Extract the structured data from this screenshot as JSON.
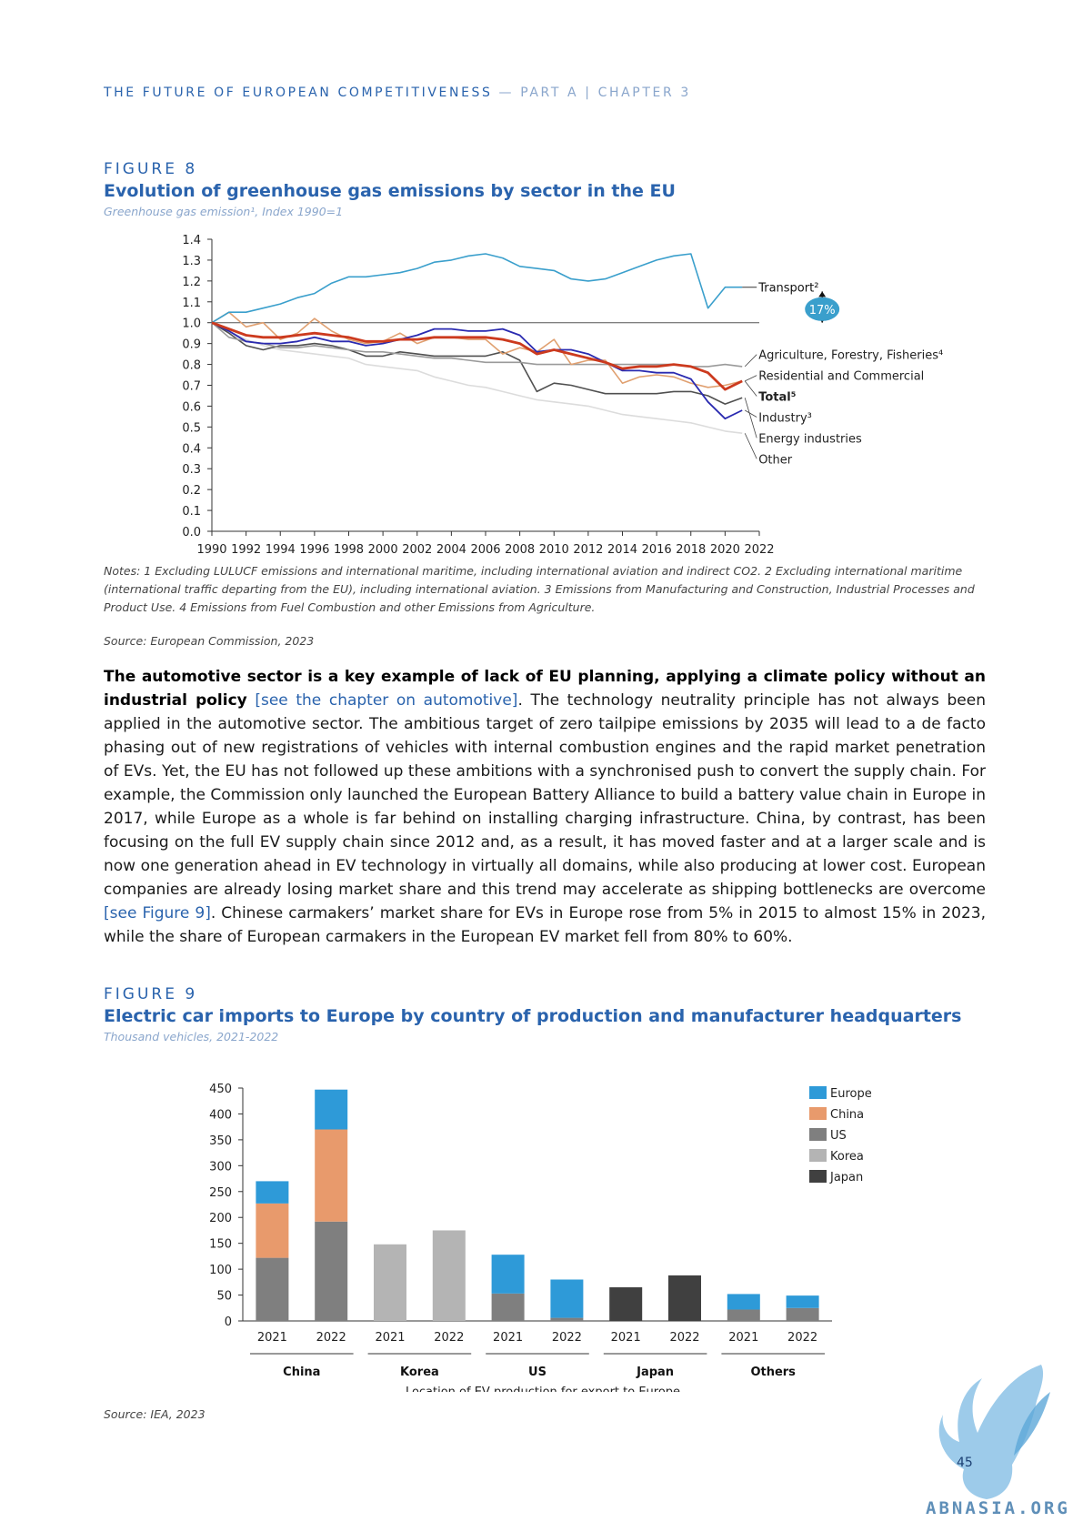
{
  "header": {
    "main": "THE FUTURE OF EUROPEAN COMPETITIVENESS",
    "sep": " — ",
    "part": "PART A | CHAPTER 3"
  },
  "figure8": {
    "label": "FIGURE 8",
    "title": "Evolution of greenhouse gas emissions by sector in the EU",
    "subtitle": "Greenhouse gas emission¹, Index 1990=1",
    "notes": "Notes: 1 Excluding LULUCF emissions and international maritime, including international aviation and indirect CO2. 2 Excluding international maritime (international traffic departing from the EU), including international aviation. 3 Emissions from Manufacturing and Construction, Industrial Processes and Product Use. 4 Emissions from Fuel Combustion and other Emissions from Agriculture.",
    "source": "Source: European Commission, 2023",
    "callout": "17%"
  },
  "body": {
    "bold": "The automotive sector is a key example of lack of EU planning, applying a climate policy without an industrial policy",
    "link1": "[see the chapter on automotive]",
    "text1": ". The technology neutrality principle has not always been applied in the automotive sector. The ambitious target of zero tailpipe emissions by 2035 will lead to a de facto phasing out of new registrations of vehicles with internal combustion engines and the rapid market penetration of EVs. Yet, the EU has not followed up these ambitions with a synchronised push to convert the supply chain. For example, the Commission only launched the European Battery Alliance to build a battery value chain in Europe in 2017, while Europe as a whole is far behind on installing charging infrastructure. China, by contrast, has been focusing on the full EV supply chain since 2012 and, as a result, it has moved faster and at a larger scale and is now one generation ahead in EV technology in virtually all domains, while also producing at lower cost. European companies are already losing market share and this trend may accelerate as shipping bottlenecks are overcome ",
    "link2": "[see Figure 9]",
    "text2": ". Chinese carmakers’ market share for EVs in Europe rose from 5% in 2015 to almost 15% in 2023, while the share of European carmakers in the European EV market fell from 80% to 60%."
  },
  "figure9": {
    "label": "FIGURE 9",
    "title": "Electric car imports to Europe by country of production and manufacturer headquarters",
    "subtitle": "Thousand vehicles, 2021-2022",
    "source": "Source: IEA, 2023"
  },
  "page": {
    "number": "45",
    "logo_text": "ABNASIA.ORG"
  },
  "chart_data": [
    {
      "type": "line",
      "x": [
        1990,
        1991,
        1992,
        1993,
        1994,
        1995,
        1996,
        1997,
        1998,
        1999,
        2000,
        2001,
        2002,
        2003,
        2004,
        2005,
        2006,
        2007,
        2008,
        2009,
        2010,
        2011,
        2012,
        2013,
        2014,
        2015,
        2016,
        2017,
        2018,
        2019,
        2020,
        2021
      ],
      "xticks": [
        1990,
        1992,
        1994,
        1996,
        1998,
        2000,
        2002,
        2004,
        2006,
        2008,
        2010,
        2012,
        2014,
        2016,
        2018,
        2020,
        2022
      ],
      "yticks": [
        "0.0",
        "0.1",
        "0.2",
        "0.3",
        "0.4",
        "0.5",
        "0.6",
        "0.7",
        "0.8",
        "0.9",
        "1.0",
        "1.1",
        "1.2",
        "1.3",
        "1.4"
      ],
      "ylim": [
        0,
        1.4
      ],
      "xlim": [
        1990,
        2022
      ],
      "reference_line": 1.0,
      "grid": false,
      "series": [
        {
          "name": "Transport²",
          "color": "#3a9fcc",
          "width": 1.6,
          "values": [
            1.0,
            1.05,
            1.05,
            1.07,
            1.09,
            1.12,
            1.14,
            1.19,
            1.22,
            1.22,
            1.23,
            1.24,
            1.26,
            1.29,
            1.3,
            1.32,
            1.33,
            1.31,
            1.27,
            1.26,
            1.25,
            1.21,
            1.2,
            1.21,
            1.24,
            1.27,
            1.3,
            1.32,
            1.33,
            1.07,
            1.17,
            1.17
          ]
        },
        {
          "name": "Agriculture, Forestry, Fisheries⁴",
          "color": "#9a9a9a",
          "width": 1.6,
          "values": [
            1.0,
            0.93,
            0.91,
            0.9,
            0.88,
            0.88,
            0.89,
            0.88,
            0.87,
            0.86,
            0.86,
            0.85,
            0.84,
            0.83,
            0.83,
            0.82,
            0.81,
            0.81,
            0.81,
            0.8,
            0.8,
            0.8,
            0.8,
            0.8,
            0.8,
            0.8,
            0.8,
            0.8,
            0.79,
            0.79,
            0.8,
            0.79
          ]
        },
        {
          "name": "Residential and Commercial",
          "color": "#e0a070",
          "width": 1.6,
          "values": [
            1.0,
            1.05,
            0.98,
            1.0,
            0.92,
            0.95,
            1.02,
            0.96,
            0.92,
            0.9,
            0.91,
            0.95,
            0.9,
            0.93,
            0.93,
            0.92,
            0.92,
            0.85,
            0.88,
            0.86,
            0.92,
            0.8,
            0.82,
            0.82,
            0.71,
            0.74,
            0.75,
            0.74,
            0.71,
            0.69,
            0.7,
            0.72
          ]
        },
        {
          "name": "Total⁵",
          "color": "#cc3a1e",
          "width": 2.8,
          "values": [
            1.0,
            0.97,
            0.94,
            0.93,
            0.93,
            0.94,
            0.95,
            0.94,
            0.93,
            0.91,
            0.91,
            0.92,
            0.92,
            0.93,
            0.93,
            0.93,
            0.93,
            0.92,
            0.9,
            0.85,
            0.87,
            0.85,
            0.83,
            0.81,
            0.78,
            0.79,
            0.79,
            0.8,
            0.79,
            0.76,
            0.68,
            0.72
          ]
        },
        {
          "name": "Industry³",
          "color": "#2a2ab0",
          "width": 1.8,
          "values": [
            1.0,
            0.96,
            0.91,
            0.9,
            0.9,
            0.91,
            0.93,
            0.91,
            0.91,
            0.89,
            0.9,
            0.92,
            0.94,
            0.97,
            0.97,
            0.96,
            0.96,
            0.97,
            0.94,
            0.86,
            0.87,
            0.87,
            0.85,
            0.81,
            0.77,
            0.77,
            0.76,
            0.76,
            0.73,
            0.62,
            0.54,
            0.58
          ]
        },
        {
          "name": "Energy industries",
          "color": "#505050",
          "width": 1.6,
          "values": [
            1.0,
            0.95,
            0.89,
            0.87,
            0.89,
            0.89,
            0.9,
            0.89,
            0.87,
            0.84,
            0.84,
            0.86,
            0.85,
            0.84,
            0.84,
            0.84,
            0.84,
            0.86,
            0.82,
            0.67,
            0.71,
            0.7,
            0.68,
            0.66,
            0.66,
            0.66,
            0.66,
            0.67,
            0.67,
            0.65,
            0.61,
            0.64
          ]
        },
        {
          "name": "Other",
          "color": "#dcdcdc",
          "width": 1.6,
          "values": [
            1.0,
            0.96,
            0.92,
            0.89,
            0.87,
            0.86,
            0.85,
            0.84,
            0.83,
            0.8,
            0.79,
            0.78,
            0.77,
            0.74,
            0.72,
            0.7,
            0.69,
            0.67,
            0.65,
            0.63,
            0.62,
            0.61,
            0.6,
            0.58,
            0.56,
            0.55,
            0.54,
            0.53,
            0.52,
            0.5,
            0.48,
            0.47
          ]
        }
      ]
    },
    {
      "type": "bar",
      "stacked": true,
      "xlabel": "Location of EV production for export to Europe",
      "yticks": [
        "0",
        "50",
        "100",
        "150",
        "200",
        "250",
        "300",
        "350",
        "400",
        "450"
      ],
      "ylim": [
        0,
        450
      ],
      "groups": [
        "China",
        "Korea",
        "US",
        "Japan",
        "Others"
      ],
      "categories": [
        "2021",
        "2022",
        "2021",
        "2022",
        "2021",
        "2022",
        "2021",
        "2022",
        "2021",
        "2022"
      ],
      "legend_position": "top-right",
      "series": [
        {
          "name": "Japan",
          "color": "#404040",
          "values": [
            0,
            0,
            0,
            0,
            0,
            0,
            65,
            88,
            0,
            0
          ]
        },
        {
          "name": "Korea",
          "color": "#b4b4b4",
          "values": [
            0,
            0,
            148,
            175,
            0,
            0,
            0,
            0,
            0,
            0
          ]
        },
        {
          "name": "US",
          "color": "#7f7f7f",
          "values": [
            122,
            192,
            0,
            0,
            53,
            6,
            0,
            0,
            22,
            25
          ]
        },
        {
          "name": "China",
          "color": "#e89a6c",
          "values": [
            105,
            178,
            0,
            0,
            0,
            0,
            0,
            0,
            0,
            0
          ]
        },
        {
          "name": "Europe",
          "color": "#2e9ad8",
          "values": [
            43,
            77,
            0,
            0,
            75,
            74,
            0,
            0,
            30,
            24
          ]
        }
      ],
      "legend_order": [
        "Europe",
        "China",
        "US",
        "Korea",
        "Japan"
      ]
    }
  ]
}
